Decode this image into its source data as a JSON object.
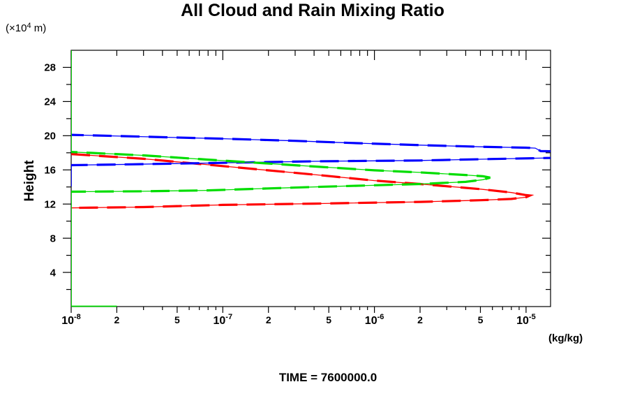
{
  "title": "All Cloud and Rain Mixing Ratio",
  "caption": "TIME = 7600000.0",
  "y_axis": {
    "label": "Height",
    "unit_prefix": "(×10",
    "unit_sup": "4",
    "unit_suffix": " m)"
  },
  "x_axis": {
    "unit": "(kg/kg)"
  },
  "chart_data": {
    "type": "line",
    "title": "All Cloud and Rain Mixing Ratio",
    "xlabel": "(kg/kg)",
    "ylabel": "Height (×10^4 m)",
    "x_scale": "log",
    "xlim": [
      1e-08,
      1.45e-05
    ],
    "ylim": [
      0,
      30
    ],
    "grid": false,
    "legend": "none",
    "colors": {
      "red": "#ff0000",
      "blue": "#0000ff",
      "green": "#00dd00",
      "frame": "#000000"
    },
    "x_labeled_ticks": [
      {
        "v": 1e-08,
        "base": "10",
        "sup": "-8"
      },
      {
        "v": 2e-08,
        "label": "2"
      },
      {
        "v": 5e-08,
        "label": "5"
      },
      {
        "v": 1e-07,
        "base": "10",
        "sup": "-7"
      },
      {
        "v": 2e-07,
        "label": "2"
      },
      {
        "v": 5e-07,
        "label": "5"
      },
      {
        "v": 1e-06,
        "base": "10",
        "sup": "-6"
      },
      {
        "v": 2e-06,
        "label": "2"
      },
      {
        "v": 5e-06,
        "label": "5"
      },
      {
        "v": 1e-05,
        "base": "10",
        "sup": "-5"
      }
    ],
    "x_minor_ticks": [
      3e-08,
      4e-08,
      6e-08,
      7e-08,
      8e-08,
      9e-08,
      3e-07,
      4e-07,
      6e-07,
      7e-07,
      8e-07,
      9e-07,
      3e-06,
      4e-06,
      6e-06,
      7e-06,
      8e-06,
      9e-06
    ],
    "y_major_ticks": [
      4,
      8,
      12,
      16,
      20,
      24,
      28
    ],
    "y_minor_ticks": [
      2,
      6,
      10,
      14,
      18,
      22,
      26
    ],
    "series": [
      {
        "name": "rain-mixing-ratio-red",
        "color": "#ff0000",
        "style": "thin-solid-with-thick-dashes",
        "points": [
          [
            1e-08,
            17.85
          ],
          [
            3e-08,
            17.3
          ],
          [
            8e-08,
            16.6
          ],
          [
            4e-07,
            15.45
          ],
          [
            1e-06,
            14.75
          ],
          [
            2e-06,
            14.35
          ],
          [
            5e-06,
            13.75
          ],
          [
            8e-06,
            13.35
          ],
          [
            1e-05,
            13.05
          ],
          [
            1.06e-05,
            13.0
          ],
          [
            1e-05,
            12.8
          ],
          [
            8e-06,
            12.6
          ],
          [
            5e-06,
            12.45
          ],
          [
            2e-06,
            12.25
          ],
          [
            4e-07,
            12.05
          ],
          [
            1e-07,
            11.9
          ],
          [
            3e-08,
            11.65
          ],
          [
            1e-08,
            11.55
          ]
        ]
      },
      {
        "name": "cloud-mixing-ratio-blue",
        "color": "#0000ff",
        "style": "thin-solid-with-thick-dashes",
        "points": [
          [
            1e-08,
            20.1
          ],
          [
            1e-07,
            19.65
          ],
          [
            3e-07,
            19.4
          ],
          [
            7e-07,
            19.15
          ],
          [
            2e-06,
            18.9
          ],
          [
            5e-06,
            18.7
          ],
          [
            1e-05,
            18.6
          ],
          [
            1.15e-05,
            18.55
          ],
          [
            1.25e-05,
            18.2
          ],
          [
            1.45e-05,
            18.18
          ],
          [
            2.2e-05,
            17.8
          ],
          [
            1.45e-05,
            17.4
          ],
          [
            5e-06,
            17.25
          ],
          [
            2e-06,
            17.1
          ],
          [
            4e-07,
            17.0
          ],
          [
            8e-08,
            16.8
          ],
          [
            2.5e-08,
            16.65
          ],
          [
            1e-08,
            16.55
          ]
        ]
      },
      {
        "name": "cloud-mixing-ratio-green",
        "color": "#00dd00",
        "style": "thin-solid-with-thick-dashes",
        "points": [
          [
            1e-08,
            18.1
          ],
          [
            3e-08,
            17.7
          ],
          [
            8e-08,
            17.2
          ],
          [
            4e-07,
            16.4
          ],
          [
            1e-06,
            15.95
          ],
          [
            2e-06,
            15.7
          ],
          [
            4e-06,
            15.4
          ],
          [
            5.2e-06,
            15.25
          ],
          [
            5.8e-06,
            15.1
          ],
          [
            5.2e-06,
            14.85
          ],
          [
            4e-06,
            14.6
          ],
          [
            2e-06,
            14.35
          ],
          [
            4e-07,
            14.0
          ],
          [
            8e-08,
            13.6
          ],
          [
            3e-08,
            13.5
          ],
          [
            1e-08,
            13.45
          ]
        ]
      }
    ],
    "axis_overlay_segments": [
      {
        "name": "blue-clipped-on-left-axis",
        "color": "#0000ff",
        "orient": "vertical",
        "x": 1e-08,
        "from_h": 16.55,
        "to_h": 14.05
      },
      {
        "name": "green-clipped-on-left-axis-top",
        "color": "#00dd00",
        "orient": "vertical",
        "x": 1e-08,
        "from_h": 30,
        "to_h": 18.1
      },
      {
        "name": "green-clipped-on-left-axis-bottom",
        "color": "#00dd00",
        "orient": "vertical",
        "x": 1e-08,
        "from_h": 13.45,
        "to_h": 0
      },
      {
        "name": "green-along-bottom-axis",
        "color": "#00dd00",
        "orient": "horizontal",
        "h": 0,
        "from_x": 1e-08,
        "to_x": 2e-08
      }
    ]
  }
}
